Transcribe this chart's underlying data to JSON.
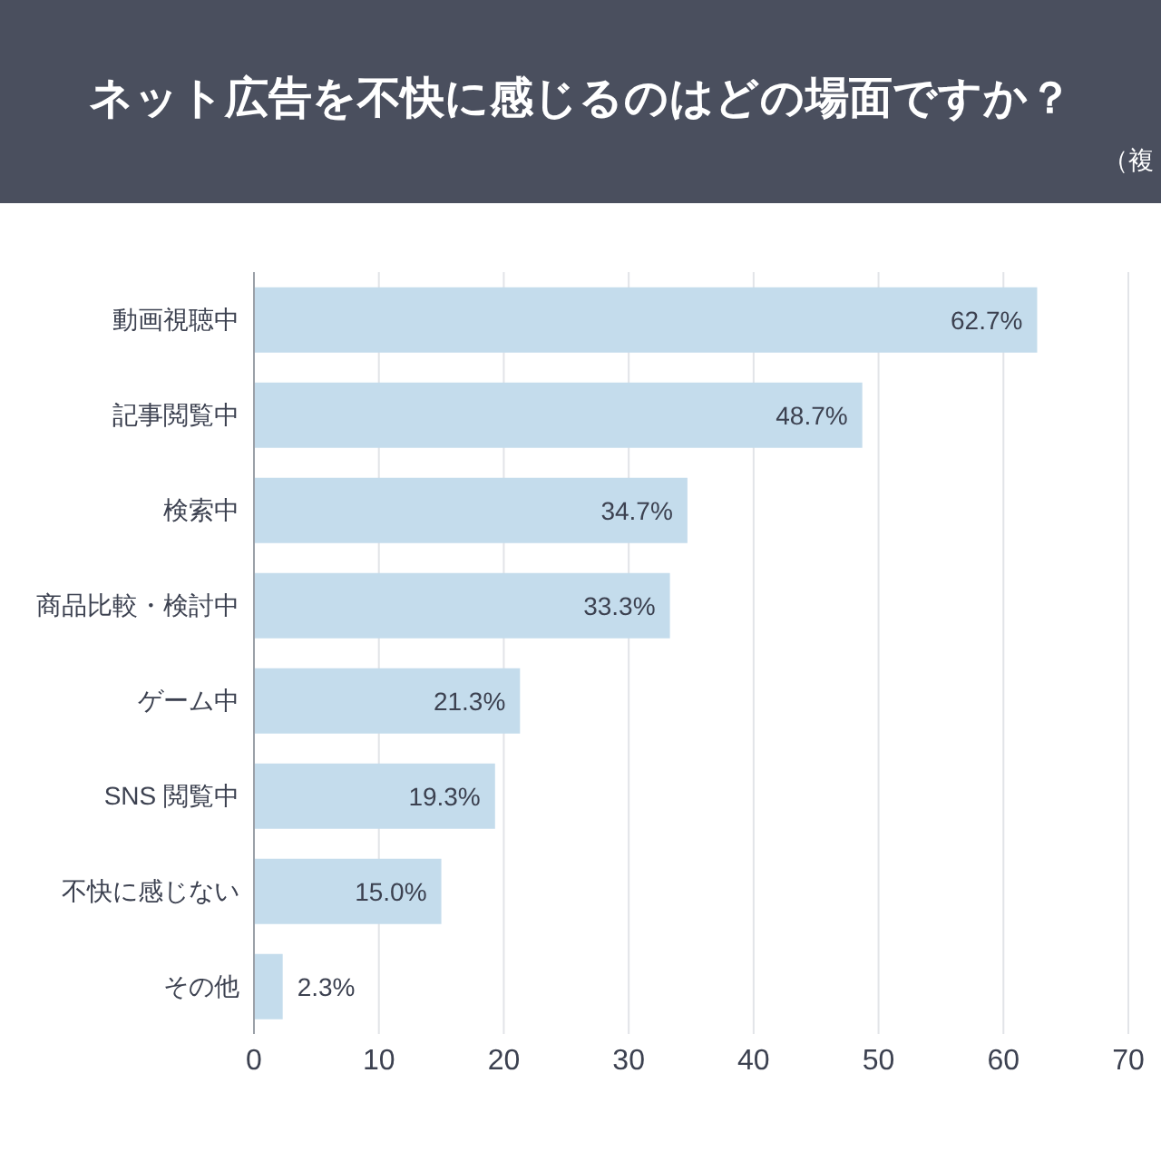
{
  "chart_data": {
    "type": "bar",
    "orientation": "horizontal",
    "title": "ネット広告を不快に感じるのはどの場面ですか？",
    "subtitle": "（複",
    "categories": [
      "動画視聴中",
      "記事閲覧中",
      "検索中",
      "商品比較・検討中",
      "ゲーム中",
      "SNS 閲覧中",
      "不快に感じない",
      "その他"
    ],
    "values": [
      62.7,
      48.7,
      34.7,
      33.3,
      21.3,
      19.3,
      15.0,
      2.3
    ],
    "value_labels": [
      "62.7%",
      "48.7%",
      "34.7%",
      "33.3%",
      "21.3%",
      "19.3%",
      "15.0%",
      "2.3%"
    ],
    "color": "#c4dcec",
    "xlim": [
      0,
      70
    ],
    "xticks": [
      0,
      10,
      20,
      30,
      40,
      50,
      60,
      70
    ],
    "grid": "x"
  }
}
